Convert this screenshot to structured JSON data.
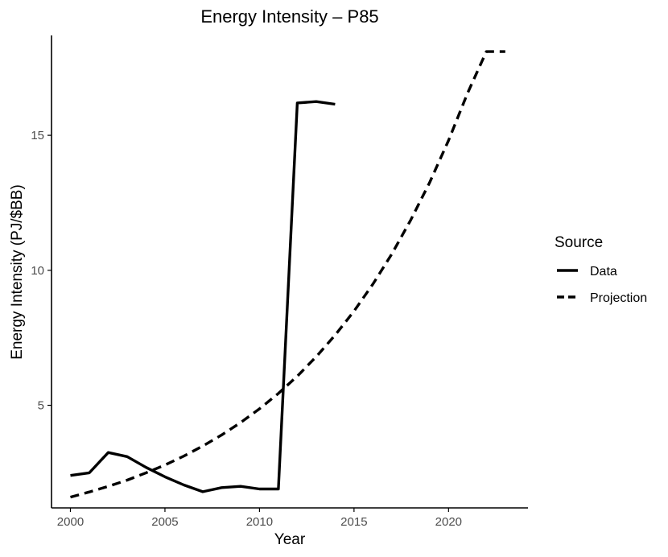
{
  "chart_data": {
    "type": "line",
    "title": "Energy Intensity – P85",
    "xlabel": "Year",
    "ylabel": "Energy Intensity (PJ/$BB)",
    "xlim": [
      1999,
      2024.2
    ],
    "ylim": [
      1.2,
      18.7
    ],
    "x_ticks": [
      2000,
      2005,
      2010,
      2015,
      2020
    ],
    "y_ticks": [
      5,
      10,
      15
    ],
    "legend": {
      "title": "Source",
      "position": "right",
      "items": [
        "Data",
        "Projection"
      ]
    },
    "series": [
      {
        "name": "Data",
        "style": "solid",
        "x": [
          2000,
          2001,
          2002,
          2003,
          2004,
          2005,
          2006,
          2007,
          2008,
          2009,
          2010,
          2011,
          2012,
          2013,
          2014
        ],
        "values": [
          2.4,
          2.5,
          3.25,
          3.1,
          2.7,
          2.35,
          2.05,
          1.8,
          1.95,
          2.0,
          1.9,
          1.9,
          16.2,
          16.25,
          16.15
        ]
      },
      {
        "name": "Projection",
        "style": "dashed",
        "x": [
          2000,
          2001,
          2002,
          2003,
          2004,
          2005,
          2006,
          2007,
          2008,
          2009,
          2010,
          2011,
          2012,
          2013,
          2014,
          2015,
          2016,
          2017,
          2018,
          2019,
          2020,
          2021,
          2022,
          2023
        ],
        "values": [
          1.6,
          1.79,
          2.0,
          2.23,
          2.5,
          2.79,
          3.12,
          3.49,
          3.9,
          4.36,
          4.87,
          5.44,
          6.08,
          6.8,
          7.6,
          8.49,
          9.49,
          10.61,
          11.86,
          13.25,
          14.81,
          16.55,
          18.1,
          18.1
        ]
      }
    ]
  }
}
